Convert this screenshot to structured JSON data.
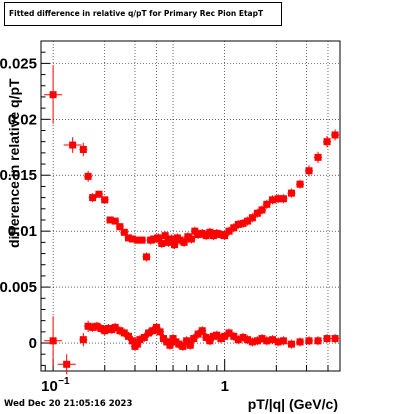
{
  "title": "Fitted difference in relative q/pT for Primary Rec Pion EtapT",
  "timestamp": "Wed Dec 20 21:05:16 2023",
  "chart_data": {
    "type": "scatter",
    "title": "Fitted difference in relative q/pT for Primary Rec Pion EtapT",
    "xlabel": "pT/|q| (GeV/c)",
    "ylabel": "difference in relative q/pT",
    "xscale": "log",
    "xlim": [
      0.085,
      4.7
    ],
    "ylim": [
      -0.0025,
      0.027
    ],
    "grid": true,
    "xticks": [
      {
        "value": 0.1,
        "label": "10⁻¹"
      },
      {
        "value": 1,
        "label": "1"
      }
    ],
    "yticks": [
      {
        "value": 0,
        "label": "0"
      },
      {
        "value": 0.005,
        "label": "0.005"
      },
      {
        "value": 0.01,
        "label": "0.01"
      },
      {
        "value": 0.015,
        "label": "0.015"
      },
      {
        "value": 0.02,
        "label": "0.02"
      },
      {
        "value": 0.025,
        "label": "0.025"
      }
    ],
    "series": [
      {
        "marker_color": "#ff0000",
        "points": [
          [
            0.1,
            0.0222,
            0.0026
          ],
          [
            0.13,
            0.0177,
            0.0007
          ],
          [
            0.15,
            0.0173,
            0.0006
          ],
          [
            0.16,
            0.0149,
            0.0005
          ],
          [
            0.17,
            0.013,
            0.0004
          ],
          [
            0.185,
            0.0133,
            0.0003
          ],
          [
            0.2,
            0.0128,
            0.0003
          ],
          [
            0.215,
            0.011,
            0.0003
          ],
          [
            0.23,
            0.0109,
            0.0003
          ],
          [
            0.245,
            0.0104,
            0.0003
          ],
          [
            0.26,
            0.0099,
            0.0003
          ],
          [
            0.275,
            0.0094,
            0.0003
          ],
          [
            0.29,
            0.0093,
            0.0003
          ],
          [
            0.31,
            0.0092,
            0.0003
          ],
          [
            0.33,
            0.0092,
            0.0003
          ],
          [
            0.35,
            0.0077,
            0.0004
          ],
          [
            0.37,
            0.0092,
            0.0004
          ],
          [
            0.39,
            0.0093,
            0.0004
          ],
          [
            0.41,
            0.0094,
            0.0004
          ],
          [
            0.43,
            0.0089,
            0.0004
          ],
          [
            0.45,
            0.0096,
            0.0004
          ],
          [
            0.47,
            0.009,
            0.0004
          ],
          [
            0.49,
            0.0093,
            0.0004
          ],
          [
            0.51,
            0.0088,
            0.0004
          ],
          [
            0.53,
            0.0094,
            0.0004
          ],
          [
            0.55,
            0.0092,
            0.0004
          ],
          [
            0.58,
            0.009,
            0.0004
          ],
          [
            0.61,
            0.0095,
            0.0004
          ],
          [
            0.64,
            0.0093,
            0.0004
          ],
          [
            0.67,
            0.01,
            0.0004
          ],
          [
            0.7,
            0.0097,
            0.0004
          ],
          [
            0.74,
            0.0098,
            0.0004
          ],
          [
            0.78,
            0.0096,
            0.0004
          ],
          [
            0.82,
            0.0099,
            0.0004
          ],
          [
            0.86,
            0.0096,
            0.0004
          ],
          [
            0.9,
            0.0098,
            0.0004
          ],
          [
            0.95,
            0.0097,
            0.0004
          ],
          [
            1.0,
            0.0096,
            0.0004
          ],
          [
            1.06,
            0.01,
            0.0004
          ],
          [
            1.13,
            0.0103,
            0.0004
          ],
          [
            1.2,
            0.0106,
            0.0004
          ],
          [
            1.28,
            0.0107,
            0.0004
          ],
          [
            1.36,
            0.0109,
            0.0004
          ],
          [
            1.45,
            0.0112,
            0.0004
          ],
          [
            1.55,
            0.0116,
            0.0004
          ],
          [
            1.65,
            0.0119,
            0.0004
          ],
          [
            1.76,
            0.0124,
            0.0004
          ],
          [
            1.9,
            0.0128,
            0.0004
          ],
          [
            2.05,
            0.0129,
            0.0004
          ],
          [
            2.2,
            0.0129,
            0.0004
          ],
          [
            2.45,
            0.0134,
            0.0004
          ],
          [
            2.75,
            0.0142,
            0.0004
          ],
          [
            3.1,
            0.0154,
            0.0005
          ],
          [
            3.5,
            0.0166,
            0.0005
          ],
          [
            3.95,
            0.018,
            0.0005
          ],
          [
            4.4,
            0.0186,
            0.0005
          ]
        ]
      },
      {
        "marker_color": "#ff0000",
        "points": [
          [
            0.1,
            0.0002,
            0.0022
          ],
          [
            0.12,
            -0.0019,
            0.0009
          ],
          [
            0.15,
            0.0003,
            0.0006
          ],
          [
            0.16,
            0.0015,
            0.0005
          ],
          [
            0.17,
            0.0014,
            0.0004
          ],
          [
            0.18,
            0.0015,
            0.0004
          ],
          [
            0.19,
            0.0013,
            0.0004
          ],
          [
            0.2,
            0.0011,
            0.0004
          ],
          [
            0.21,
            0.0013,
            0.0004
          ],
          [
            0.22,
            0.0012,
            0.0004
          ],
          [
            0.23,
            0.0014,
            0.0004
          ],
          [
            0.245,
            0.0011,
            0.0004
          ],
          [
            0.26,
            0.0009,
            0.0004
          ],
          [
            0.275,
            0.0006,
            0.0004
          ],
          [
            0.29,
            0.0002,
            0.0004
          ],
          [
            0.3,
            -0.0003,
            0.0004
          ],
          [
            0.31,
            -0.0001,
            0.0004
          ],
          [
            0.32,
            0.0003,
            0.0004
          ],
          [
            0.34,
            0.0005,
            0.0004
          ],
          [
            0.36,
            0.0009,
            0.0004
          ],
          [
            0.38,
            0.0011,
            0.0004
          ],
          [
            0.4,
            0.0014,
            0.0004
          ],
          [
            0.42,
            0.001,
            0.0004
          ],
          [
            0.44,
            0.0004,
            0.0004
          ],
          [
            0.46,
            0.0001,
            0.0004
          ],
          [
            0.48,
            -0.0002,
            0.0004
          ],
          [
            0.5,
            0.0004,
            0.0004
          ],
          [
            0.52,
            0.0001,
            0.0004
          ],
          [
            0.54,
            -0.0001,
            0.0004
          ],
          [
            0.57,
            -0.0003,
            0.0004
          ],
          [
            0.6,
            0.0002,
            0.0004
          ],
          [
            0.63,
            -0.0002,
            0.0004
          ],
          [
            0.66,
            0.0004,
            0.0004
          ],
          [
            0.7,
            0.0008,
            0.0004
          ],
          [
            0.74,
            0.0011,
            0.0004
          ],
          [
            0.78,
            0.0005,
            0.0004
          ],
          [
            0.82,
            0.0002,
            0.0004
          ],
          [
            0.86,
            0.0006,
            0.0004
          ],
          [
            0.9,
            0.0007,
            0.0004
          ],
          [
            0.95,
            0.0004,
            0.0004
          ],
          [
            1.0,
            0.0006,
            0.0004
          ],
          [
            1.06,
            0.0009,
            0.0004
          ],
          [
            1.13,
            0.0006,
            0.0004
          ],
          [
            1.2,
            0.0003,
            0.0004
          ],
          [
            1.28,
            0.0005,
            0.0004
          ],
          [
            1.36,
            0.0003,
            0.0004
          ],
          [
            1.45,
            0.0001,
            0.0004
          ],
          [
            1.55,
            0.0002,
            0.0004
          ],
          [
            1.65,
            0.0004,
            0.0004
          ],
          [
            1.76,
            0.0002,
            0.0004
          ],
          [
            1.9,
            0.0003,
            0.0004
          ],
          [
            2.05,
            0.0001,
            0.0004
          ],
          [
            2.2,
            0.0002,
            0.0004
          ],
          [
            2.45,
            -0.0001,
            0.0004
          ],
          [
            2.75,
            0.0001,
            0.0004
          ],
          [
            3.1,
            0.0002,
            0.0004
          ],
          [
            3.5,
            0.0002,
            0.0004
          ],
          [
            3.95,
            0.0004,
            0.0004
          ],
          [
            4.4,
            0.0004,
            0.0004
          ]
        ]
      }
    ]
  }
}
